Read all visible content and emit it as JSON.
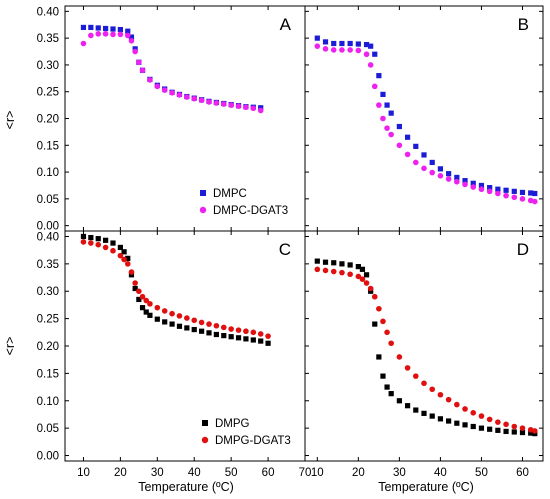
{
  "figure": {
    "xlabel": "Temperature (ºC)",
    "ylabel": "<r>",
    "x_ticks": [
      10,
      20,
      30,
      40,
      50,
      60,
      70
    ],
    "xlim_left": [
      5,
      70
    ],
    "xlim_right": [
      7,
      65
    ],
    "ylim": [
      -0.01,
      0.41
    ],
    "y_ticks": [
      "0.00",
      "0.05",
      "0.10",
      "0.15",
      "0.20",
      "0.25",
      "0.30",
      "0.35",
      "0.40"
    ]
  },
  "chart_data": [
    {
      "type": "scatter",
      "panel": "A",
      "title": "",
      "xlabel": "",
      "ylabel": "<r>",
      "xlim": [
        5,
        70
      ],
      "ylim": [
        -0.01,
        0.41
      ],
      "legend_position": "bottom-right",
      "series": [
        {
          "name": "DMPC",
          "color": "#1c1cd6",
          "marker": "square",
          "x": [
            10,
            12,
            14,
            16,
            18,
            20,
            22,
            23,
            24,
            25,
            26,
            28,
            30,
            32,
            34,
            36,
            38,
            40,
            42,
            44,
            46,
            48,
            50,
            52,
            54,
            56,
            58
          ],
          "y": [
            0.37,
            0.37,
            0.369,
            0.368,
            0.367,
            0.366,
            0.363,
            0.352,
            0.33,
            0.305,
            0.29,
            0.273,
            0.262,
            0.255,
            0.249,
            0.245,
            0.241,
            0.238,
            0.235,
            0.232,
            0.23,
            0.228,
            0.226,
            0.224,
            0.222,
            0.221,
            0.22
          ]
        },
        {
          "name": "DMPC-DGAT3",
          "color": "#ee22ee",
          "marker": "circle",
          "x": [
            10,
            12,
            14,
            16,
            18,
            20,
            22,
            23,
            24,
            25,
            26,
            28,
            30,
            32,
            34,
            36,
            38,
            40,
            42,
            44,
            46,
            48,
            50,
            52,
            54,
            56,
            58
          ],
          "y": [
            0.34,
            0.355,
            0.358,
            0.358,
            0.357,
            0.357,
            0.355,
            0.345,
            0.325,
            0.305,
            0.29,
            0.272,
            0.26,
            0.253,
            0.248,
            0.244,
            0.24,
            0.237,
            0.234,
            0.231,
            0.229,
            0.227,
            0.225,
            0.223,
            0.221,
            0.219,
            0.215
          ]
        }
      ]
    },
    {
      "type": "scatter",
      "panel": "B",
      "title": "",
      "xlabel": "",
      "ylabel": "",
      "xlim": [
        7,
        65
      ],
      "ylim": [
        -0.01,
        0.41
      ],
      "series": [
        {
          "name": "DMPC",
          "color": "#1c1cd6",
          "marker": "square",
          "x": [
            10,
            12,
            14,
            16,
            18,
            20,
            22,
            23,
            24,
            25,
            26,
            27,
            28,
            30,
            32,
            34,
            36,
            38,
            40,
            42,
            44,
            46,
            48,
            50,
            52,
            54,
            56,
            58,
            60,
            62,
            63
          ],
          "y": [
            0.35,
            0.343,
            0.34,
            0.34,
            0.34,
            0.339,
            0.338,
            0.335,
            0.32,
            0.28,
            0.245,
            0.225,
            0.21,
            0.185,
            0.165,
            0.148,
            0.132,
            0.118,
            0.106,
            0.097,
            0.09,
            0.084,
            0.079,
            0.075,
            0.071,
            0.068,
            0.066,
            0.064,
            0.062,
            0.061,
            0.06
          ]
        },
        {
          "name": "DMPC-DGAT3",
          "color": "#ee22ee",
          "marker": "circle",
          "x": [
            10,
            12,
            14,
            16,
            18,
            20,
            22,
            23,
            24,
            25,
            26,
            27,
            28,
            30,
            32,
            34,
            36,
            38,
            40,
            42,
            44,
            46,
            48,
            50,
            52,
            54,
            56,
            58,
            60,
            62,
            63
          ],
          "y": [
            0.335,
            0.33,
            0.328,
            0.328,
            0.328,
            0.327,
            0.32,
            0.3,
            0.26,
            0.225,
            0.2,
            0.182,
            0.17,
            0.15,
            0.133,
            0.118,
            0.107,
            0.099,
            0.093,
            0.087,
            0.082,
            0.077,
            0.072,
            0.068,
            0.064,
            0.06,
            0.056,
            0.053,
            0.05,
            0.047,
            0.045
          ]
        }
      ]
    },
    {
      "type": "scatter",
      "panel": "C",
      "title": "",
      "xlabel": "Temperature (ºC)",
      "ylabel": "<r>",
      "xlim": [
        5,
        70
      ],
      "ylim": [
        -0.01,
        0.41
      ],
      "legend_position": "bottom-left",
      "series": [
        {
          "name": "DMPG",
          "color": "#000000",
          "marker": "square",
          "x": [
            10,
            12,
            14,
            16,
            18,
            20,
            21,
            22,
            23,
            24,
            25,
            26,
            27,
            28,
            30,
            32,
            34,
            36,
            38,
            40,
            42,
            44,
            46,
            48,
            50,
            52,
            54,
            56,
            58,
            60
          ],
          "y": [
            0.4,
            0.398,
            0.396,
            0.393,
            0.388,
            0.38,
            0.372,
            0.36,
            0.33,
            0.305,
            0.285,
            0.27,
            0.262,
            0.256,
            0.249,
            0.244,
            0.24,
            0.236,
            0.233,
            0.23,
            0.227,
            0.224,
            0.221,
            0.219,
            0.217,
            0.215,
            0.213,
            0.211,
            0.209,
            0.205
          ]
        },
        {
          "name": "DMPG-DGAT3",
          "color": "#e01010",
          "marker": "circle",
          "x": [
            10,
            12,
            14,
            16,
            18,
            20,
            21,
            22,
            23,
            24,
            25,
            26,
            27,
            28,
            30,
            32,
            34,
            36,
            38,
            40,
            42,
            44,
            46,
            48,
            50,
            52,
            54,
            56,
            58,
            60
          ],
          "y": [
            0.39,
            0.388,
            0.385,
            0.38,
            0.374,
            0.365,
            0.358,
            0.35,
            0.335,
            0.315,
            0.3,
            0.29,
            0.283,
            0.277,
            0.27,
            0.264,
            0.259,
            0.255,
            0.251,
            0.247,
            0.243,
            0.24,
            0.237,
            0.234,
            0.231,
            0.229,
            0.227,
            0.225,
            0.222,
            0.218
          ]
        }
      ]
    },
    {
      "type": "scatter",
      "panel": "D",
      "title": "",
      "xlabel": "Temperature (ºC)",
      "ylabel": "",
      "xlim": [
        7,
        65
      ],
      "ylim": [
        -0.01,
        0.41
      ],
      "series": [
        {
          "name": "DMPG",
          "color": "#000000",
          "marker": "square",
          "x": [
            10,
            12,
            14,
            16,
            18,
            20,
            21,
            22,
            23,
            24,
            25,
            26,
            27,
            28,
            30,
            32,
            34,
            36,
            38,
            40,
            42,
            44,
            46,
            48,
            50,
            52,
            54,
            56,
            58,
            60,
            62,
            63
          ],
          "y": [
            0.355,
            0.353,
            0.352,
            0.35,
            0.348,
            0.345,
            0.34,
            0.33,
            0.3,
            0.24,
            0.18,
            0.145,
            0.125,
            0.113,
            0.1,
            0.091,
            0.083,
            0.077,
            0.072,
            0.067,
            0.063,
            0.059,
            0.056,
            0.053,
            0.05,
            0.048,
            0.046,
            0.044,
            0.043,
            0.042,
            0.041,
            0.04
          ]
        },
        {
          "name": "DMPG-DGAT3",
          "color": "#e01010",
          "marker": "circle",
          "x": [
            10,
            12,
            14,
            16,
            18,
            20,
            21,
            22,
            23,
            24,
            25,
            26,
            27,
            28,
            30,
            32,
            34,
            36,
            38,
            40,
            42,
            44,
            46,
            48,
            50,
            52,
            54,
            56,
            58,
            60,
            62,
            63
          ],
          "y": [
            0.34,
            0.338,
            0.336,
            0.334,
            0.331,
            0.327,
            0.322,
            0.315,
            0.305,
            0.29,
            0.268,
            0.245,
            0.225,
            0.205,
            0.18,
            0.16,
            0.145,
            0.132,
            0.121,
            0.111,
            0.102,
            0.093,
            0.085,
            0.078,
            0.072,
            0.066,
            0.061,
            0.057,
            0.053,
            0.05,
            0.047,
            0.045
          ]
        }
      ]
    }
  ]
}
